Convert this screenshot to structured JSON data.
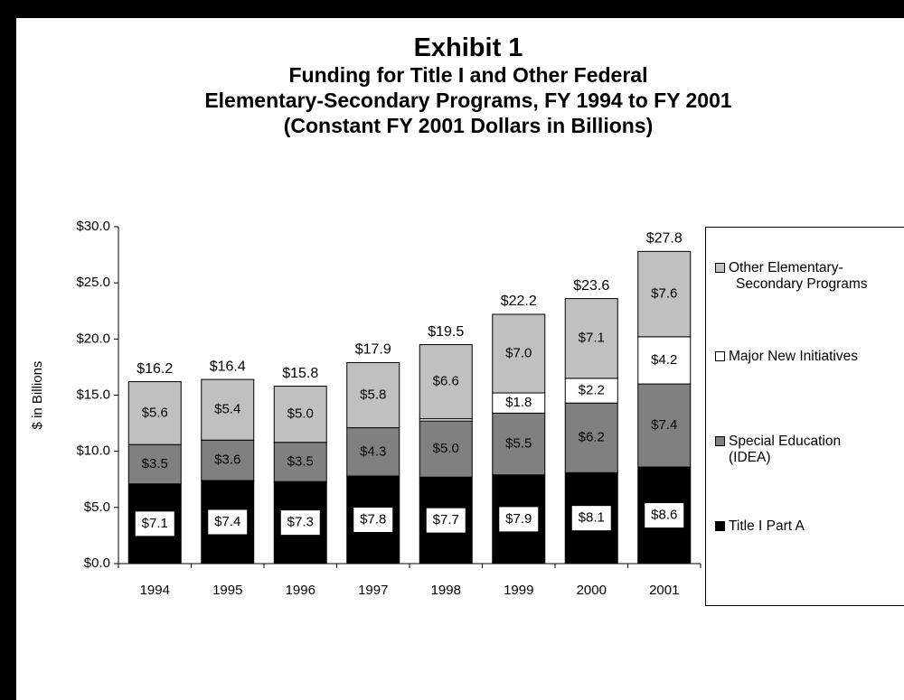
{
  "titles": {
    "exhibit": "Exhibit 1",
    "line1": "Funding for Title I and Other Federal",
    "line2": "Elementary-Secondary Programs, FY 1994 to FY 2001",
    "line3": "(Constant FY 2001 Dollars in Billions)"
  },
  "chart_data": {
    "type": "bar",
    "stacked": true,
    "categories": [
      "1994",
      "1995",
      "1996",
      "1997",
      "1998",
      "1999",
      "2000",
      "2001"
    ],
    "ylabel": "$ in Billions",
    "xlabel": "",
    "ylim": [
      0,
      30
    ],
    "yticks": [
      "$0.0",
      "$5.0",
      "$10.0",
      "$15.0",
      "$20.0",
      "$25.0",
      "$30.0"
    ],
    "legend_position": "right",
    "series": [
      {
        "name": "Title I Part A",
        "color": "#000000",
        "values": [
          7.1,
          7.4,
          7.3,
          7.8,
          7.7,
          7.9,
          8.1,
          8.6
        ],
        "labels": [
          "$7.1",
          "$7.4",
          "$7.3",
          "$7.8",
          "$7.7",
          "$7.9",
          "$8.1",
          "$8.6"
        ]
      },
      {
        "name": "Special Education (IDEA)",
        "color": "#808080",
        "values": [
          3.5,
          3.6,
          3.5,
          4.3,
          5.0,
          5.5,
          6.2,
          7.4
        ],
        "labels": [
          "$3.5",
          "$3.6",
          "$3.5",
          "$4.3",
          "$5.0",
          "$5.5",
          "$6.2",
          "$7.4"
        ]
      },
      {
        "name": "Major New Initiatives",
        "color": "#ffffff",
        "values": [
          0,
          0,
          0,
          0,
          0.2,
          1.8,
          2.2,
          4.2
        ],
        "labels": [
          "",
          "",
          "",
          "",
          "",
          "$1.8",
          "$2.2",
          "$4.2"
        ]
      },
      {
        "name": "Other Elementary-Secondary Programs",
        "color": "#c0c0c0",
        "values": [
          5.6,
          5.4,
          5.0,
          5.8,
          6.6,
          7.0,
          7.1,
          7.6
        ],
        "labels": [
          "$5.6",
          "$5.4",
          "$5.0",
          "$5.8",
          "$6.6",
          "$7.0",
          "$7.1",
          "$7.6"
        ]
      }
    ],
    "totals": [
      16.2,
      16.4,
      15.8,
      17.9,
      19.5,
      22.2,
      23.6,
      27.8
    ],
    "total_labels": [
      "$16.2",
      "$16.4",
      "$15.8",
      "$17.9",
      "$19.5",
      "$22.2",
      "$23.6",
      "$27.8"
    ]
  },
  "legend": {
    "items": [
      {
        "line1": "Other Elementary-",
        "line2": "Secondary Programs",
        "color": "#c0c0c0"
      },
      {
        "line1": "Major New Initiatives",
        "line2": "",
        "color": "#ffffff"
      },
      {
        "line1": "Special Education",
        "line2": "(IDEA)",
        "color": "#808080"
      },
      {
        "line1": "Title I Part A",
        "line2": "",
        "color": "#000000"
      }
    ]
  }
}
